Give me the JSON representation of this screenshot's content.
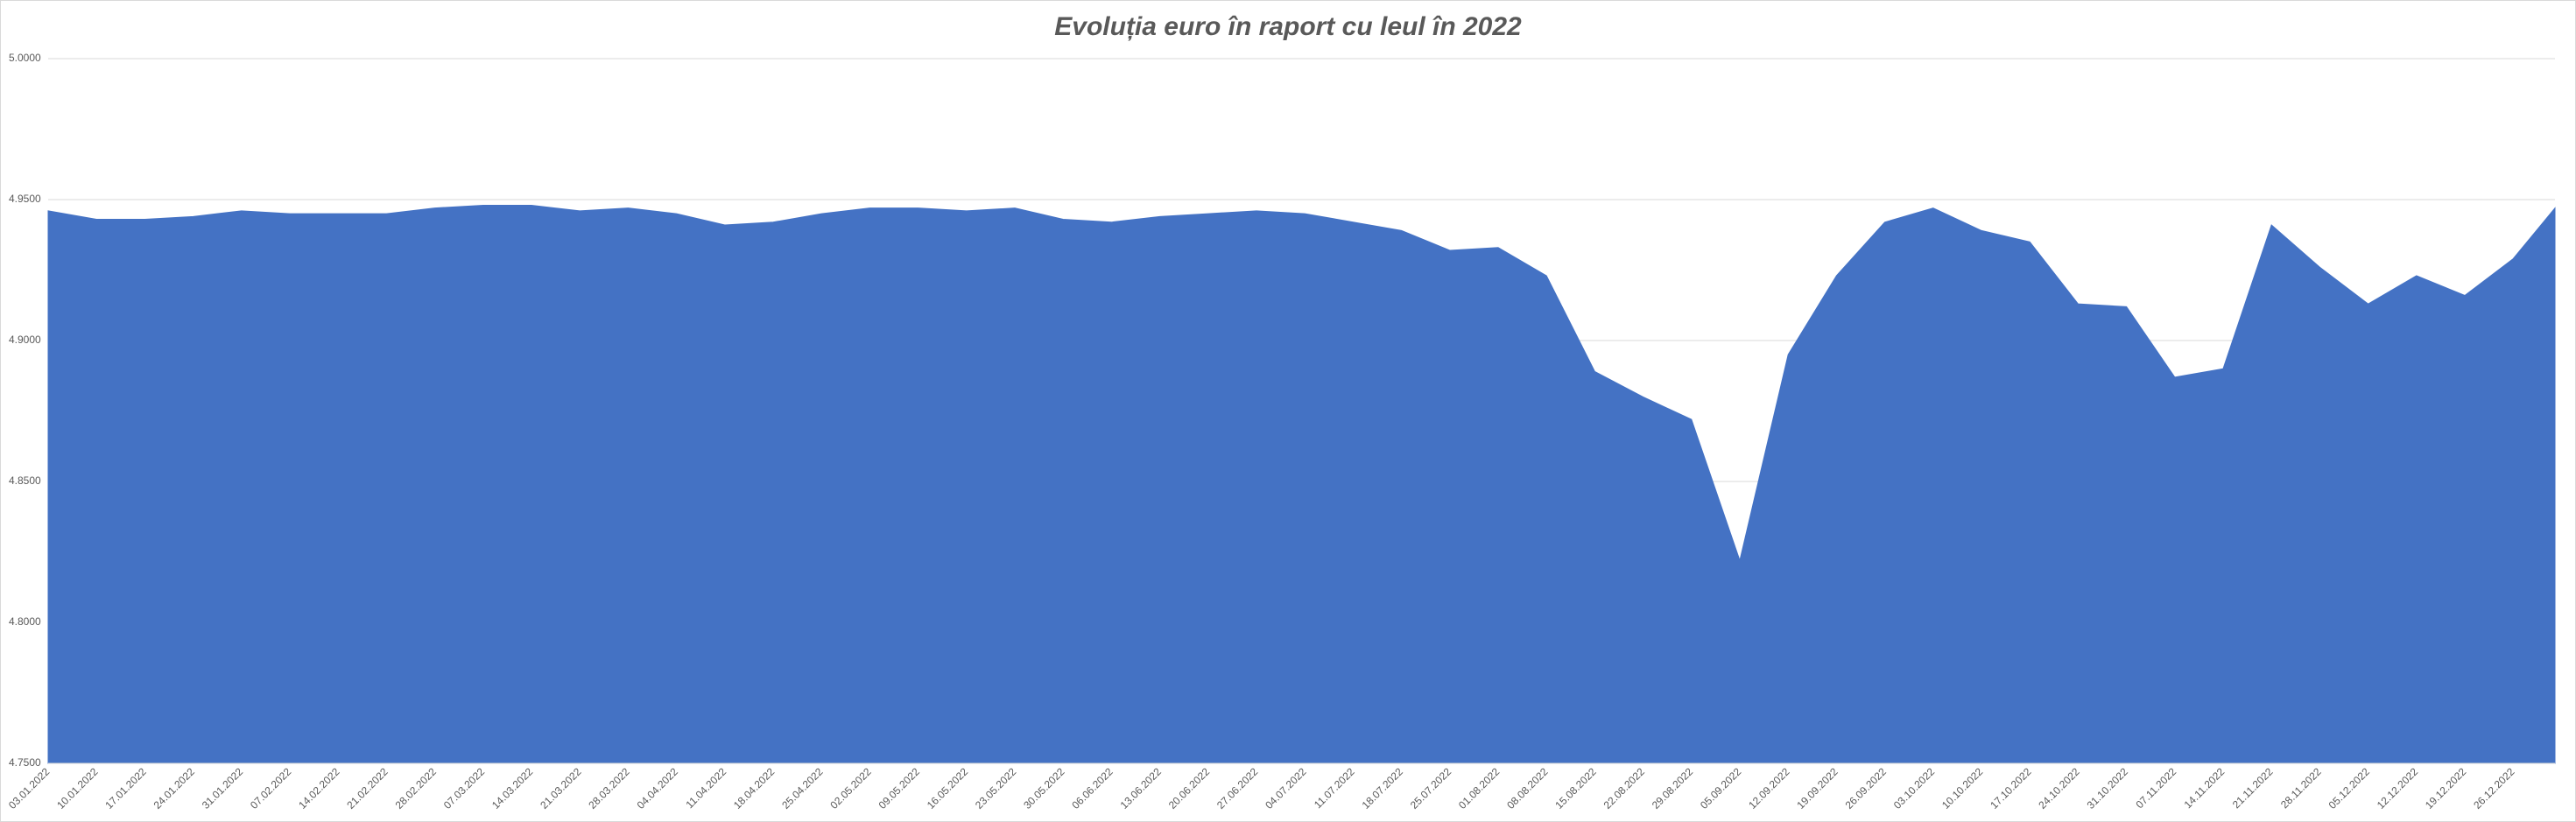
{
  "chart_data": {
    "type": "area",
    "title": "Evoluția euro în raport cu leul în 2022",
    "color": "#4472c4",
    "grid": true,
    "ylim": [
      4.75,
      5.0
    ],
    "yticks": [
      {
        "value": 4.75,
        "label": "4.7500"
      },
      {
        "value": 4.8,
        "label": "4.8000"
      },
      {
        "value": 4.85,
        "label": "4.8500"
      },
      {
        "value": 4.9,
        "label": "4.9000"
      },
      {
        "value": 4.95,
        "label": "4.9500"
      },
      {
        "value": 5.0,
        "label": "5.0000"
      }
    ],
    "categories": [
      "03.01.2022",
      "10.01.2022",
      "17.01.2022",
      "24.01.2022",
      "31.01.2022",
      "07.02.2022",
      "14.02.2022",
      "21.02.2022",
      "28.02.2022",
      "07.03.2022",
      "14.03.2022",
      "21.03.2022",
      "28.03.2022",
      "04.04.2022",
      "11.04.2022",
      "18.04.2022",
      "25.04.2022",
      "02.05.2022",
      "09.05.2022",
      "16.05.2022",
      "23.05.2022",
      "30.05.2022",
      "06.06.2022",
      "13.06.2022",
      "20.06.2022",
      "27.06.2022",
      "04.07.2022",
      "11.07.2022",
      "18.07.2022",
      "25.07.2022",
      "01.08.2022",
      "08.08.2022",
      "15.08.2022",
      "22.08.2022",
      "29.08.2022",
      "05.09.2022",
      "12.09.2022",
      "19.09.2022",
      "26.09.2022",
      "03.10.2022",
      "10.10.2022",
      "17.10.2022",
      "24.10.2022",
      "31.10.2022",
      "07.11.2022",
      "14.11.2022",
      "21.11.2022",
      "28.11.2022",
      "05.12.2022",
      "12.12.2022",
      "19.12.2022",
      "26.12.2022",
      null
    ],
    "values": [
      4.946,
      4.943,
      4.943,
      4.944,
      4.946,
      4.945,
      4.945,
      4.945,
      4.947,
      4.948,
      4.948,
      4.946,
      4.947,
      4.945,
      4.941,
      4.942,
      4.945,
      4.947,
      4.947,
      4.946,
      4.947,
      4.943,
      4.942,
      4.944,
      4.945,
      4.946,
      4.945,
      4.942,
      4.939,
      4.932,
      4.933,
      4.923,
      4.889,
      4.88,
      4.872,
      4.822,
      4.895,
      4.923,
      4.942,
      4.947,
      4.939,
      4.935,
      4.913,
      4.912,
      4.887,
      4.89,
      4.941,
      4.926,
      4.913,
      4.923,
      4.916,
      4.929,
      4.947
    ]
  }
}
